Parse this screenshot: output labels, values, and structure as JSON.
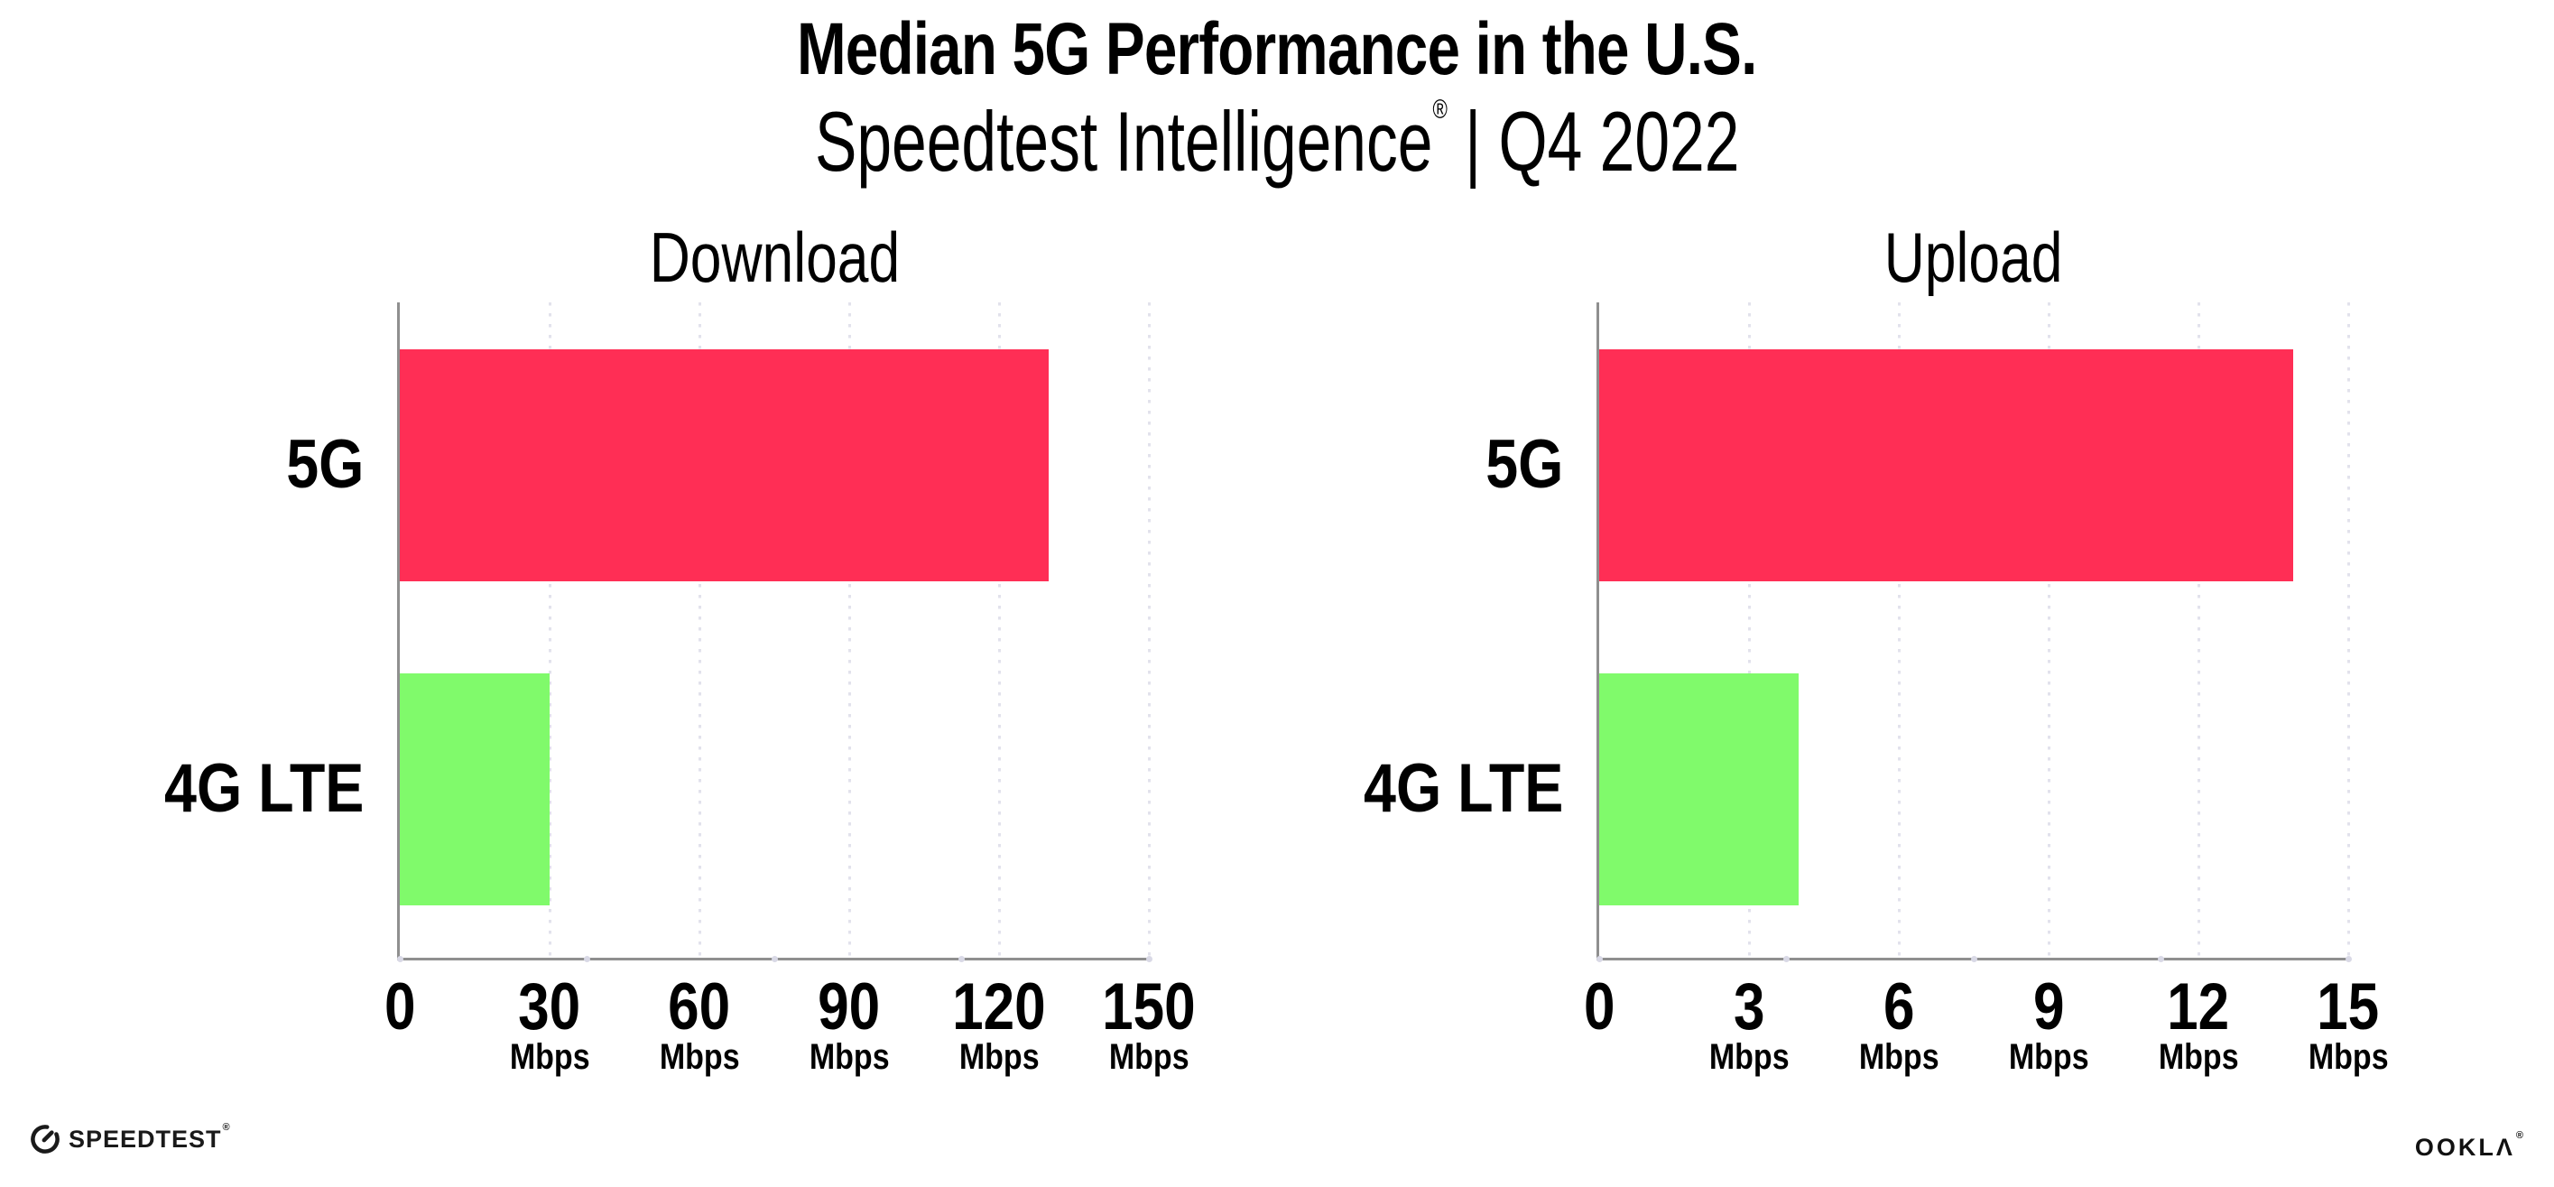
{
  "header": {
    "title": "Median 5G Performance in the U.S.",
    "subtitle_brand": "Speedtest Intelligence",
    "subtitle_reg": "®",
    "subtitle_rest": " | Q4 2022"
  },
  "colors": {
    "bar_5g": "#FF2E55",
    "bar_4g_lte": "#80FA6B",
    "axis": "#8F8F8F",
    "gridline": "#E2E2EC",
    "axis_dot": "#D9D9E6",
    "text": "#000000"
  },
  "chart_data": [
    {
      "type": "bar",
      "orientation": "horizontal",
      "title": "Download",
      "categories": [
        "5G",
        "4G LTE"
      ],
      "values": [
        130,
        30
      ],
      "unit": "Mbps",
      "xlabel": "",
      "xlim": [
        0,
        150
      ],
      "xticks": [
        0,
        30,
        60,
        90,
        120,
        150
      ],
      "grid": "vertical-dotted",
      "legend": "none",
      "bar_colors": [
        "#FF2E55",
        "#80FA6B"
      ]
    },
    {
      "type": "bar",
      "orientation": "horizontal",
      "title": "Upload",
      "categories": [
        "5G",
        "4G LTE"
      ],
      "values": [
        13.9,
        4
      ],
      "unit": "Mbps",
      "xlabel": "",
      "xlim": [
        0,
        15
      ],
      "xticks": [
        0,
        3,
        6,
        9,
        12,
        15
      ],
      "grid": "vertical-dotted",
      "legend": "none",
      "bar_colors": [
        "#FF2E55",
        "#80FA6B"
      ]
    }
  ],
  "footer": {
    "speedtest_label": "SPEEDTEST",
    "speedtest_reg": "®",
    "ookla_label": "OOKLΛ",
    "ookla_reg": "®"
  }
}
